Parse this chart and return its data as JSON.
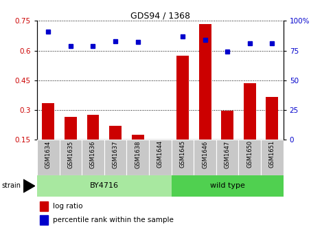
{
  "title": "GDS94 / 1368",
  "categories": [
    "GSM1634",
    "GSM1635",
    "GSM1636",
    "GSM1637",
    "GSM1638",
    "GSM1644",
    "GSM1645",
    "GSM1646",
    "GSM1647",
    "GSM1650",
    "GSM1651"
  ],
  "log_ratio": [
    0.335,
    0.265,
    0.275,
    0.22,
    0.175,
    0.0,
    0.575,
    0.735,
    0.295,
    0.435,
    0.365
  ],
  "percentile_rank": [
    91,
    79,
    79,
    83,
    82,
    0,
    87,
    84,
    74,
    81,
    81
  ],
  "bar_color": "#cc0000",
  "dot_color": "#0000cc",
  "left_ylim": [
    0.15,
    0.75
  ],
  "left_yticks": [
    0.15,
    0.3,
    0.45,
    0.6,
    0.75
  ],
  "right_ylim": [
    0,
    100
  ],
  "right_yticks": [
    0,
    25,
    50,
    75,
    100
  ],
  "right_yticklabels": [
    "0",
    "25",
    "50",
    "75",
    "100%"
  ],
  "group1_label": "BY4716",
  "group2_label": "wild type",
  "group1_indices": [
    0,
    1,
    2,
    3,
    4,
    5
  ],
  "group2_indices": [
    6,
    7,
    8,
    9,
    10
  ],
  "strain_label": "strain",
  "legend_log_ratio": "log ratio",
  "legend_percentile": "percentile rank within the sample",
  "bar_color_leg": "#cc0000",
  "dot_color_leg": "#0000cc",
  "tick_bg": "#c8c8c8",
  "group1_bg": "#a8e8a0",
  "group2_bg": "#50d050"
}
